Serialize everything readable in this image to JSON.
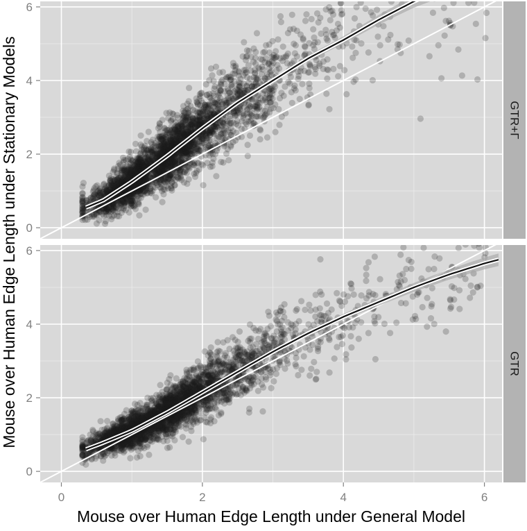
{
  "chart_data": {
    "type": "scatter",
    "xlabel": "Mouse over Human Edge Length under General Model",
    "ylabel": "Mouse over Human Edge Length under Stationary Models",
    "xlim": [
      -0.3,
      6.25
    ],
    "ylim": [
      -0.3,
      6.15
    ],
    "x_ticks": [
      0,
      2,
      4,
      6
    ],
    "y_ticks": [
      0,
      2,
      4,
      6
    ],
    "grid": true,
    "reference_line": "y = x",
    "colors": {
      "panel": "#d9d9d9",
      "strip": "#b3b3b3",
      "points": "#1a1a1a",
      "smooth": "#111111",
      "grid": "#ffffff"
    },
    "panels": [
      {
        "label": "GTR+Γ",
        "smooth_fit": {
          "x": [
            0.35,
            0.6,
            1.0,
            1.5,
            2.0,
            2.5,
            3.0,
            3.5,
            4.0,
            4.5,
            5.0,
            5.3
          ],
          "y": [
            0.55,
            0.75,
            1.25,
            1.95,
            2.7,
            3.4,
            4.0,
            4.6,
            5.1,
            5.65,
            6.15,
            6.4
          ],
          "ci_halfwidth": [
            0.06,
            0.04,
            0.03,
            0.03,
            0.04,
            0.05,
            0.06,
            0.08,
            0.1,
            0.13,
            0.17,
            0.2
          ]
        },
        "point_model": {
          "n": 3200,
          "slope": 1.22,
          "core_x_range": [
            0.3,
            6.1
          ],
          "spread": 0.6
        }
      },
      {
        "label": "GTR",
        "smooth_fit": {
          "x": [
            0.35,
            0.6,
            1.0,
            1.5,
            2.0,
            2.5,
            3.0,
            3.5,
            4.0,
            4.5,
            5.0,
            5.5,
            6.0,
            6.2
          ],
          "y": [
            0.6,
            0.78,
            1.1,
            1.6,
            2.15,
            2.7,
            3.25,
            3.75,
            4.2,
            4.6,
            5.0,
            5.35,
            5.65,
            5.75
          ],
          "ci_halfwidth": [
            0.05,
            0.04,
            0.03,
            0.03,
            0.03,
            0.04,
            0.05,
            0.06,
            0.08,
            0.1,
            0.12,
            0.14,
            0.16,
            0.17
          ]
        },
        "point_model": {
          "n": 3200,
          "slope": 1.02,
          "core_x_range": [
            0.3,
            6.1
          ],
          "spread": 0.45
        }
      }
    ]
  }
}
